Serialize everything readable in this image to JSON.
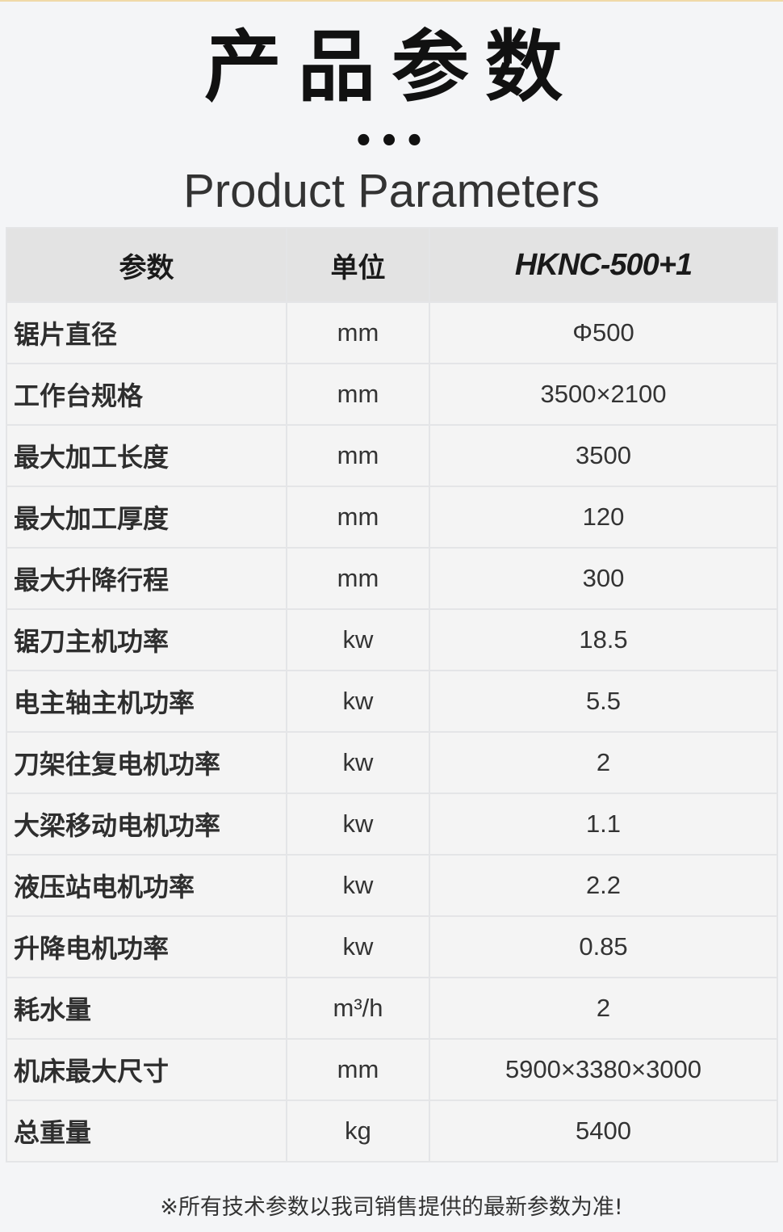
{
  "header": {
    "title_cn": "产品参数",
    "dots": "•••",
    "title_en": "Product Parameters"
  },
  "table": {
    "columns": [
      "参数",
      "单位",
      "HKNC-500+1"
    ],
    "rows": [
      [
        "锯片直径",
        "mm",
        "Φ500"
      ],
      [
        "工作台规格",
        "mm",
        "3500×2100"
      ],
      [
        "最大加工长度",
        "mm",
        "3500"
      ],
      [
        "最大加工厚度",
        "mm",
        "120"
      ],
      [
        "最大升降行程",
        "mm",
        "300"
      ],
      [
        "锯刀主机功率",
        "kw",
        "18.5"
      ],
      [
        "电主轴主机功率",
        "kw",
        "5.5"
      ],
      [
        "刀架往复电机功率",
        "kw",
        "2"
      ],
      [
        "大梁移动电机功率",
        "kw",
        "1.1"
      ],
      [
        "液压站电机功率",
        "kw",
        "2.2"
      ],
      [
        "升降电机功率",
        "kw",
        "0.85"
      ],
      [
        "耗水量",
        "m³/h",
        "2"
      ],
      [
        "机床最大尺寸",
        "mm",
        "5900×3380×3000"
      ],
      [
        "总重量",
        "kg",
        "5400"
      ]
    ]
  },
  "footer": {
    "note": "※所有技术参数以我司销售提供的最新参数为准!"
  }
}
